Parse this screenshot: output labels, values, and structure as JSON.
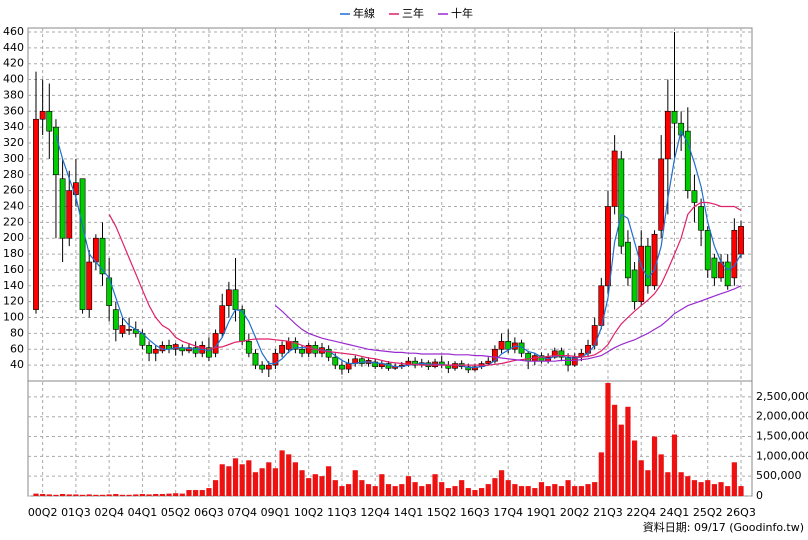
{
  "chart_data": {
    "type": "candlestick",
    "source_note": "資料日期: 09/17  (Goodinfo.tw)",
    "categories": [
      null,
      "00Q2",
      null,
      null,
      null,
      null,
      "01Q3",
      null,
      null,
      null,
      null,
      "02Q4",
      null,
      null,
      null,
      null,
      "04Q1",
      null,
      null,
      null,
      null,
      "05Q2",
      null,
      null,
      null,
      null,
      "06Q3",
      null,
      null,
      null,
      null,
      "07Q4",
      null,
      null,
      null,
      null,
      "09Q1",
      null,
      null,
      null,
      null,
      "10Q2",
      null,
      null,
      null,
      null,
      "11Q3",
      null,
      null,
      null,
      null,
      "12Q4",
      null,
      null,
      null,
      null,
      "14Q1",
      null,
      null,
      null,
      null,
      "15Q2",
      null,
      null,
      null,
      null,
      "16Q3",
      null,
      null,
      null,
      null,
      "17Q4",
      null,
      null,
      null,
      null,
      "19Q1",
      null,
      null,
      null,
      null,
      "20Q2",
      null,
      null,
      null,
      null,
      "21Q3",
      null,
      null,
      null,
      null,
      "22Q4",
      null,
      null,
      null,
      null,
      "24Q1",
      null,
      null,
      null,
      null,
      "25Q2",
      null,
      null,
      null,
      null,
      "26Q3"
    ],
    "up_color": "#ff0000",
    "down_color": "#00cc00",
    "open": [
      110,
      350,
      360,
      340,
      275,
      200,
      255,
      275,
      110,
      170,
      200,
      150,
      110,
      80,
      85,
      85,
      80,
      65,
      55,
      58,
      65,
      60,
      62,
      58,
      62,
      55,
      62,
      55,
      80,
      115,
      135,
      110,
      70,
      55,
      40,
      35,
      40,
      55,
      60,
      70,
      60,
      55,
      65,
      55,
      60,
      50,
      40,
      35,
      42,
      48,
      42,
      44,
      38,
      42,
      36,
      38,
      40,
      45,
      40,
      43,
      38,
      44,
      40,
      36,
      42,
      38,
      34,
      38,
      42,
      45,
      60,
      70,
      60,
      68,
      55,
      45,
      52,
      45,
      50,
      58,
      50,
      40,
      50,
      55,
      65,
      90,
      140,
      240,
      300,
      195,
      160,
      120,
      190,
      140,
      210,
      300,
      360,
      345,
      335,
      260,
      240,
      210,
      175,
      150,
      170,
      150,
      180
    ],
    "high": [
      410,
      400,
      395,
      350,
      300,
      285,
      300,
      275,
      185,
      205,
      220,
      175,
      120,
      100,
      100,
      95,
      85,
      70,
      65,
      70,
      72,
      68,
      66,
      68,
      70,
      70,
      75,
      85,
      130,
      145,
      175,
      115,
      80,
      60,
      45,
      45,
      60,
      70,
      75,
      75,
      65,
      68,
      70,
      68,
      65,
      55,
      45,
      48,
      52,
      50,
      50,
      48,
      46,
      45,
      42,
      44,
      50,
      50,
      48,
      46,
      48,
      52,
      45,
      45,
      46,
      42,
      42,
      45,
      50,
      65,
      80,
      85,
      75,
      72,
      58,
      55,
      56,
      55,
      62,
      62,
      55,
      55,
      60,
      72,
      100,
      150,
      260,
      330,
      310,
      210,
      170,
      210,
      200,
      210,
      330,
      400,
      460,
      360,
      365,
      280,
      250,
      215,
      180,
      180,
      180,
      225,
      222
    ],
    "low": [
      105,
      330,
      300,
      200,
      170,
      190,
      240,
      105,
      100,
      160,
      140,
      95,
      70,
      75,
      78,
      75,
      60,
      45,
      45,
      55,
      55,
      52,
      52,
      55,
      50,
      50,
      45,
      50,
      75,
      100,
      95,
      65,
      50,
      35,
      30,
      25,
      35,
      50,
      55,
      55,
      50,
      50,
      50,
      50,
      45,
      35,
      28,
      30,
      38,
      38,
      38,
      35,
      35,
      33,
      34,
      35,
      38,
      36,
      37,
      34,
      36,
      36,
      30,
      33,
      35,
      30,
      32,
      35,
      40,
      42,
      55,
      55,
      55,
      50,
      35,
      40,
      42,
      42,
      48,
      45,
      32,
      38,
      45,
      50,
      60,
      85,
      130,
      230,
      180,
      140,
      110,
      115,
      130,
      135,
      200,
      230,
      300,
      310,
      250,
      220,
      190,
      150,
      140,
      145,
      135,
      140,
      175
    ],
    "close": [
      350,
      360,
      335,
      280,
      200,
      260,
      270,
      110,
      170,
      200,
      155,
      115,
      85,
      90,
      85,
      80,
      65,
      55,
      60,
      65,
      60,
      66,
      58,
      62,
      55,
      65,
      50,
      80,
      115,
      135,
      110,
      70,
      55,
      40,
      35,
      40,
      55,
      65,
      70,
      60,
      55,
      65,
      55,
      62,
      50,
      40,
      35,
      42,
      48,
      42,
      46,
      38,
      42,
      36,
      38,
      40,
      45,
      40,
      43,
      38,
      44,
      40,
      36,
      42,
      38,
      34,
      38,
      42,
      45,
      60,
      70,
      60,
      68,
      55,
      45,
      52,
      45,
      50,
      58,
      50,
      40,
      50,
      55,
      65,
      90,
      140,
      240,
      310,
      190,
      150,
      120,
      190,
      140,
      205,
      300,
      360,
      345,
      330,
      260,
      245,
      210,
      160,
      150,
      170,
      140,
      210,
      215
    ],
    "series": [
      {
        "name": "年線",
        "color": "#1f6fd0",
        "values": [
          null,
          null,
          null,
          330,
          300,
          275,
          252,
          215,
          180,
          170,
          160,
          150,
          125,
          100,
          90,
          85,
          80,
          72,
          65,
          60,
          60,
          62,
          62,
          61,
          60,
          60,
          58,
          63,
          75,
          95,
          110,
          108,
          95,
          75,
          55,
          42,
          42,
          48,
          57,
          62,
          62,
          62,
          60,
          59,
          58,
          52,
          46,
          42,
          42,
          44,
          44,
          43,
          42,
          40,
          38,
          38,
          40,
          41,
          42,
          41,
          41,
          41,
          40,
          40,
          39,
          37,
          37,
          38,
          40,
          46,
          54,
          59,
          64,
          63,
          57,
          55,
          50,
          48,
          51,
          52,
          49,
          49,
          50,
          55,
          65,
          87,
          125,
          195,
          230,
          225,
          195,
          165,
          150,
          160,
          190,
          250,
          300,
          335,
          320,
          295,
          265,
          220,
          190,
          170,
          160,
          165,
          180
        ]
      },
      {
        "name": "三年",
        "color": "#e0206a",
        "values": [
          null,
          null,
          null,
          null,
          null,
          null,
          null,
          null,
          null,
          null,
          null,
          230,
          215,
          195,
          175,
          155,
          135,
          115,
          100,
          90,
          85,
          75,
          70,
          67,
          64,
          62,
          60,
          62,
          63,
          66,
          69,
          70,
          72,
          73,
          73,
          73,
          72,
          71,
          70,
          68,
          65,
          62,
          60,
          58,
          57,
          56,
          55,
          54,
          53,
          51,
          49,
          48,
          46,
          44,
          43,
          42,
          41,
          41,
          40,
          40,
          40,
          40,
          40,
          40,
          40,
          40,
          40,
          40,
          40,
          41,
          42,
          44,
          46,
          47,
          48,
          49,
          50,
          51,
          52,
          52,
          52,
          51,
          50,
          51,
          53,
          58,
          66,
          80,
          92,
          100,
          108,
          115,
          122,
          130,
          142,
          160,
          180,
          200,
          230,
          240,
          245,
          245,
          243,
          240,
          240,
          240,
          235
        ]
      },
      {
        "name": "十年",
        "color": "#9a2ad0",
        "values": [
          null,
          null,
          null,
          null,
          null,
          null,
          null,
          null,
          null,
          null,
          null,
          null,
          null,
          null,
          null,
          null,
          null,
          null,
          null,
          null,
          null,
          null,
          null,
          null,
          null,
          null,
          null,
          null,
          null,
          null,
          null,
          null,
          null,
          null,
          null,
          null,
          115,
          108,
          100,
          92,
          85,
          80,
          77,
          74,
          72,
          70,
          68,
          66,
          64,
          62,
          60,
          59,
          58,
          57,
          56,
          56,
          55,
          55,
          54,
          54,
          54,
          54,
          54,
          53,
          53,
          53,
          52,
          52,
          51,
          50,
          49,
          48,
          47,
          46,
          45,
          45,
          45,
          45,
          45,
          46,
          46,
          46,
          47,
          48,
          50,
          52,
          57,
          62,
          66,
          69,
          72,
          76,
          80,
          85,
          90,
          97,
          105,
          110,
          115,
          118,
          121,
          124,
          127,
          130,
          133,
          136,
          140
        ]
      }
    ],
    "ylim": [
      20,
      465
    ],
    "yticks": [
      40,
      60,
      80,
      100,
      120,
      140,
      160,
      180,
      200,
      220,
      240,
      260,
      280,
      300,
      320,
      340,
      360,
      380,
      400,
      420,
      440,
      460
    ],
    "grid": true,
    "volume": {
      "color": "#ee1111",
      "values": [
        60000,
        50000,
        40000,
        30000,
        50000,
        40000,
        40000,
        30000,
        40000,
        30000,
        30000,
        40000,
        50000,
        30000,
        30000,
        40000,
        50000,
        40000,
        50000,
        50000,
        60000,
        70000,
        60000,
        150000,
        150000,
        150000,
        200000,
        400000,
        800000,
        750000,
        950000,
        800000,
        900000,
        600000,
        700000,
        850000,
        700000,
        1150000,
        1050000,
        850000,
        650000,
        450000,
        550000,
        500000,
        750000,
        400000,
        250000,
        300000,
        650000,
        400000,
        300000,
        250000,
        550000,
        300000,
        250000,
        300000,
        500000,
        350000,
        250000,
        300000,
        550000,
        350000,
        200000,
        250000,
        400000,
        200000,
        150000,
        200000,
        300000,
        450000,
        650000,
        400000,
        300000,
        250000,
        250000,
        200000,
        350000,
        250000,
        300000,
        250000,
        400000,
        250000,
        250000,
        300000,
        350000,
        1100000,
        2850000,
        2300000,
        1800000,
        2250000,
        1400000,
        900000,
        650000,
        1500000,
        1050000,
        600000,
        1550000,
        600000,
        500000,
        400000,
        350000,
        400000,
        300000,
        350000,
        250000,
        850000,
        250000
      ],
      "ylim": [
        0,
        2900000
      ],
      "yticks": [
        {
          "value": 0,
          "label": "0"
        },
        {
          "value": 500000,
          "label": "500,000"
        },
        {
          "value": 1000000,
          "label": "1,000,000"
        },
        {
          "value": 1500000,
          "label": "1,500,000"
        },
        {
          "value": 2000000,
          "label": "2,000,000"
        },
        {
          "value": 2500000,
          "label": "2,500,000"
        }
      ]
    }
  }
}
